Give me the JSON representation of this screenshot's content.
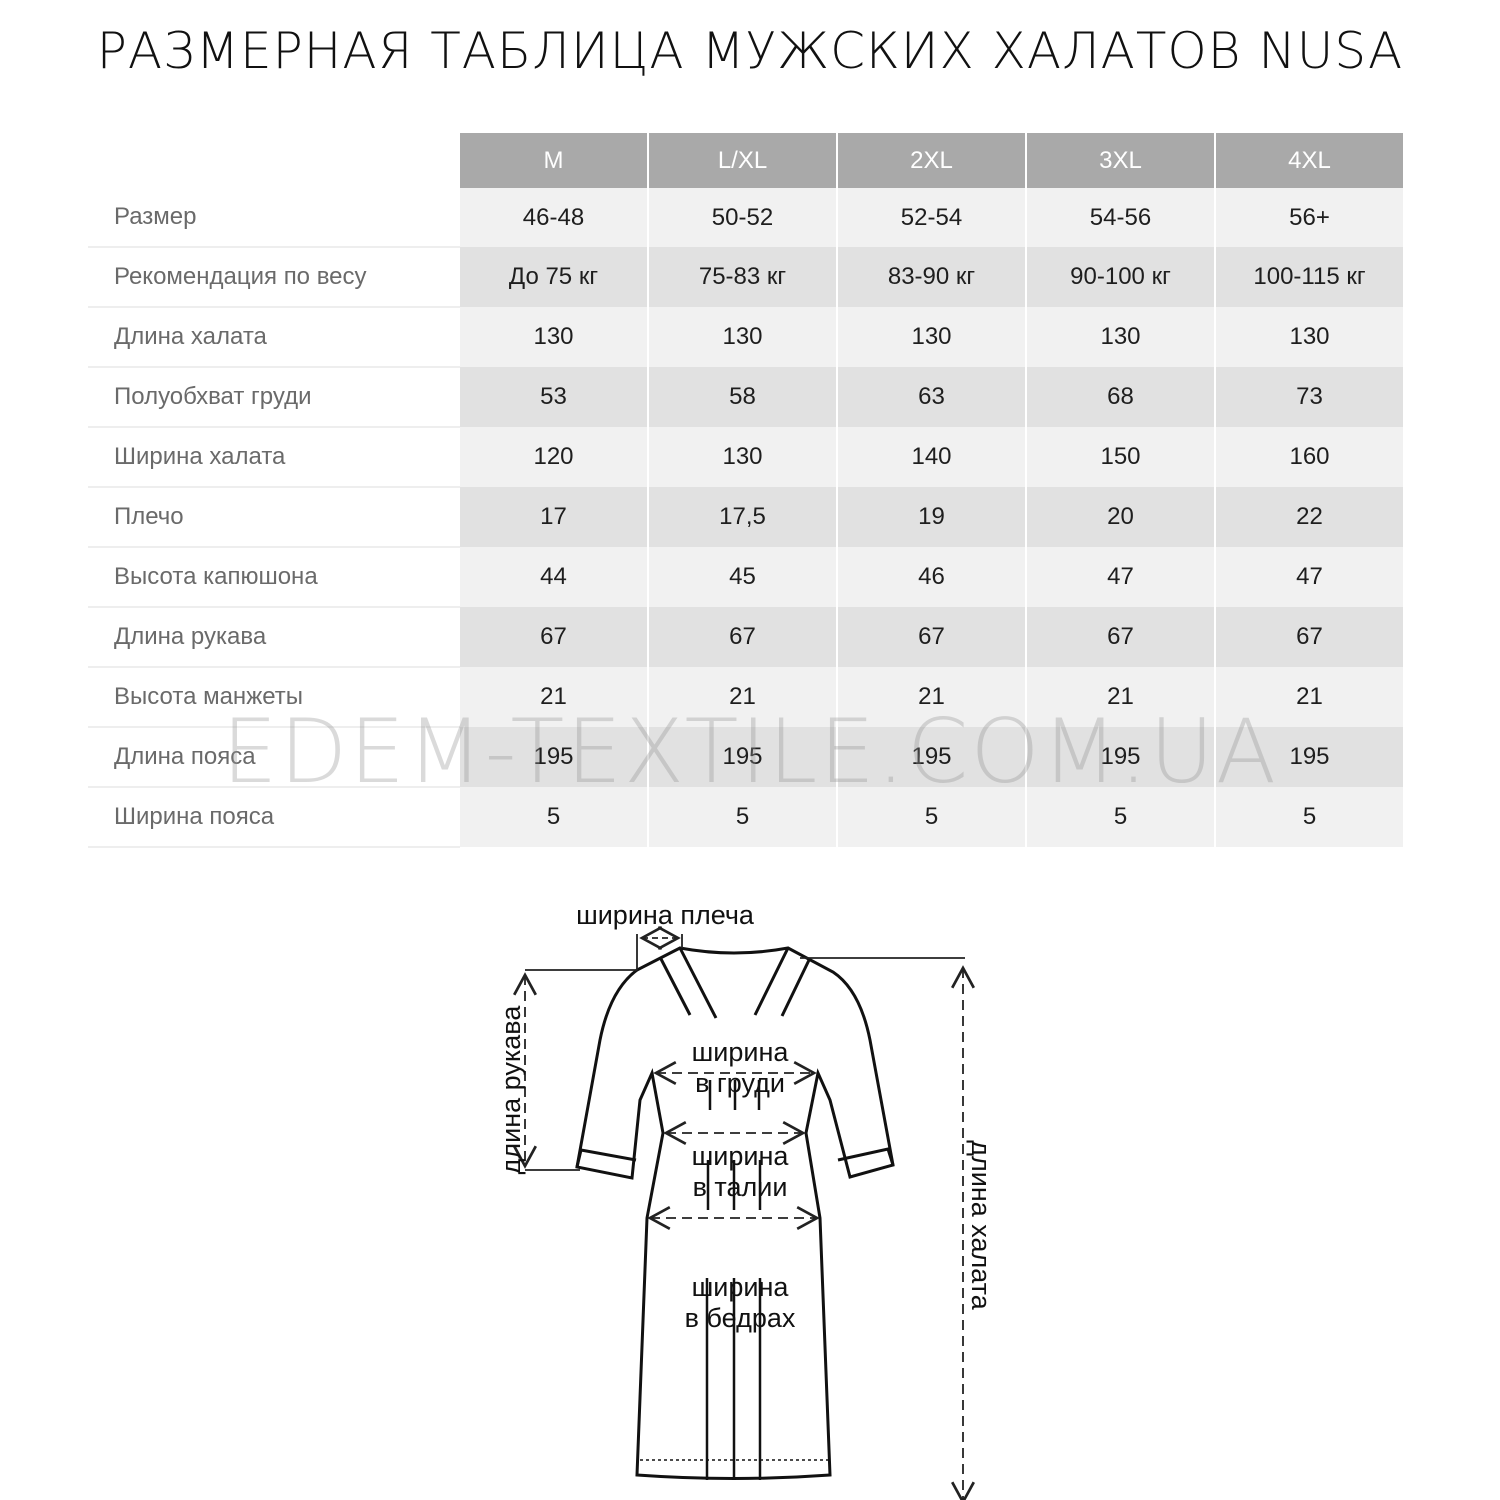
{
  "title": "РАЗМЕРНАЯ ТАБЛИЦА МУЖСКИХ ХАЛАТОВ NUSA",
  "table": {
    "headers": [
      "M",
      "L/XL",
      "2XL",
      "3XL",
      "4XL"
    ],
    "rows": [
      {
        "label": "Размер",
        "values": [
          "46-48",
          "50-52",
          "52-54",
          "54-56",
          "56+"
        ]
      },
      {
        "label": "Рекомендация по весу",
        "values": [
          "До 75 кг",
          "75-83 кг",
          "83-90 кг",
          "90-100 кг",
          "100-115 кг"
        ]
      },
      {
        "label": "Длина халата",
        "values": [
          "130",
          "130",
          "130",
          "130",
          "130"
        ]
      },
      {
        "label": "Полуобхват груди",
        "values": [
          "53",
          "58",
          "63",
          "68",
          "73"
        ]
      },
      {
        "label": "Ширина халата",
        "values": [
          "120",
          "130",
          "140",
          "150",
          "160"
        ]
      },
      {
        "label": "Плечо",
        "values": [
          "17",
          "17,5",
          "19",
          "20",
          "22"
        ]
      },
      {
        "label": "Высота капюшона",
        "values": [
          "44",
          "45",
          "46",
          "47",
          "47"
        ]
      },
      {
        "label": "Длина рукава",
        "values": [
          "67",
          "67",
          "67",
          "67",
          "67"
        ]
      },
      {
        "label": "Высота манжеты",
        "values": [
          "21",
          "21",
          "21",
          "21",
          "21"
        ]
      },
      {
        "label": "Длина пояса",
        "values": [
          "195",
          "195",
          "195",
          "195",
          "195"
        ]
      },
      {
        "label": "Ширина пояса",
        "values": [
          "5",
          "5",
          "5",
          "5",
          "5"
        ]
      }
    ],
    "colors": {
      "header_bg": "#a9a9a9",
      "row_light": "#f1f1f1",
      "row_dark": "#e1e1e1"
    }
  },
  "watermark": "EDEM-TEXTILE.COM.UA",
  "diagram": {
    "shoulder_width": "ширина плеча",
    "sleeve_length": "длина рукава",
    "robe_length": "длина халата",
    "chest_1": "ширина",
    "chest_2": "в груди",
    "waist_1": "ширина",
    "waist_2": "в талии",
    "hips_1": "ширина",
    "hips_2": "в бедрах"
  }
}
